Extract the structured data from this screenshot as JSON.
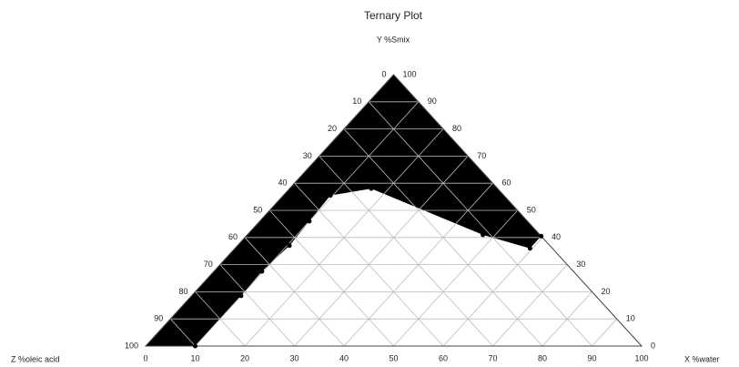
{
  "chart_data": {
    "type": "ternary",
    "title": "Ternary Plot",
    "a_label": "X %water",
    "b_label": "Y %Smix",
    "c_label": "Z %oleic acid",
    "region": {
      "color": "#000000",
      "water": [
        10,
        10,
        9.7,
        10.5,
        10,
        9.5,
        16.5,
        47.5,
        59.5,
        59.5
      ],
      "smix": [
        0,
        18.5,
        27.5,
        37,
        46,
        55.5,
        58,
        41,
        36,
        40.5
      ],
      "oil": [
        90,
        71.5,
        62.8,
        52.5,
        44,
        35,
        25.5,
        11.5,
        4.5,
        0
      ]
    },
    "xticks": [
      0,
      10,
      20,
      30,
      40,
      50,
      60,
      70,
      80,
      90,
      100
    ],
    "yticks": [
      0,
      10,
      20,
      30,
      40,
      50,
      60,
      70,
      80,
      90,
      100
    ],
    "zticks": [
      0,
      10,
      20,
      30,
      40,
      50,
      60,
      70,
      80,
      90,
      100
    ],
    "grid": true
  }
}
